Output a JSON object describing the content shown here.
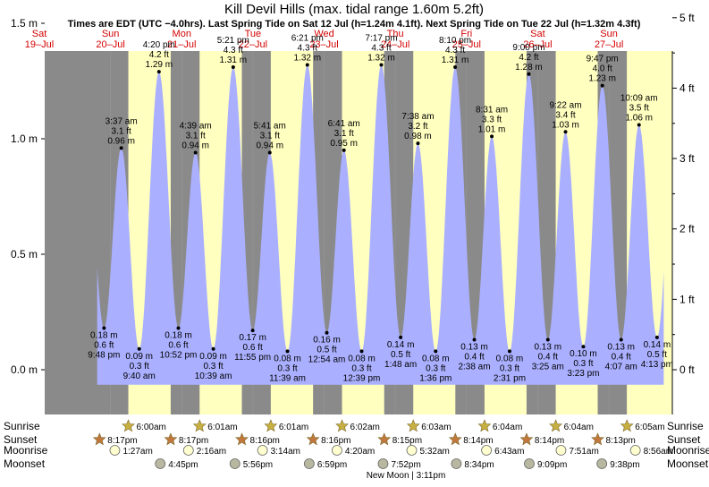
{
  "title": "Kill Devil Hills (max. tidal range 1.60m 5.2ft)",
  "subtitle": "Times are EDT (UTC −4.0hrs). Last Spring Tide on Sat 12 Jul (h=1.24m 4.1ft). Next Spring Tide on Tue 22 Jul (h=1.32m 4.3ft)",
  "colors": {
    "night": "#8a8a8a",
    "day": "#ffffc0",
    "tide_fill": "#aab0ff",
    "axis_text": "#000000",
    "date_text": "#d40000",
    "sunrise_star": "#c8b040",
    "sunset_star": "#c0783c",
    "moonrise": "#ffffd0",
    "moonset": "#b8b8a0"
  },
  "day_headers": [
    {
      "day": "Sat",
      "date": "19–Jul"
    },
    {
      "day": "Sun",
      "date": "20–Jul"
    },
    {
      "day": "Mon",
      "date": "21–Jul"
    },
    {
      "day": "Tue",
      "date": "22–Jul"
    },
    {
      "day": "Wed",
      "date": "23–Jul"
    },
    {
      "day": "Thu",
      "date": "24–Jul"
    },
    {
      "day": "Fri",
      "date": "25–Jul"
    },
    {
      "day": "Sat",
      "date": "26–Jul"
    },
    {
      "day": "Sun",
      "date": "27–Jul"
    }
  ],
  "row_labels": {
    "sunrise": "Sunrise",
    "sunset": "Sunset",
    "moonrise": "Moonrise",
    "moonset": "Moonset"
  },
  "moon_phase_note": "New Moon | 3:11pm",
  "chart_data": {
    "type": "area",
    "x_unit": "hours from 00:00 Sat 19 Jul (EDT)",
    "x_range": [
      0,
      216
    ],
    "ylim_m": [
      -0.2,
      1.72
    ],
    "ylim_ft_ticks": [
      "0 ft",
      "1 ft",
      "2 ft",
      "3 ft",
      "4 ft",
      "5 ft"
    ],
    "y_ticks_m": [
      "0.0 m",
      "0.5 m",
      "1.0 m",
      "1.5 m"
    ],
    "tides": [
      {
        "x": 21.8,
        "h": 0.18,
        "type": "low",
        "time": "9:48 pm",
        "m": "0.18 m",
        "ft": "0.6 ft"
      },
      {
        "x": 27.62,
        "h": 0.96,
        "type": "high",
        "time": "3:37 am",
        "m": "0.96 m",
        "ft": "3.1 ft"
      },
      {
        "x": 33.67,
        "h": 0.09,
        "type": "low",
        "time": "9:40 am",
        "m": "0.09 m",
        "ft": "0.3 ft"
      },
      {
        "x": 40.33,
        "h": 1.29,
        "type": "high",
        "time": "4:20 pm",
        "m": "1.29 m",
        "ft": "4.2 ft"
      },
      {
        "x": 46.87,
        "h": 0.18,
        "type": "low",
        "time": "10:52 pm",
        "m": "0.18 m",
        "ft": "0.6 ft"
      },
      {
        "x": 52.65,
        "h": 0.94,
        "type": "high",
        "time": "4:39 am",
        "m": "0.94 m",
        "ft": "3.1 ft"
      },
      {
        "x": 58.65,
        "h": 0.09,
        "type": "low",
        "time": "10:39 am",
        "m": "0.09 m",
        "ft": "0.3 ft"
      },
      {
        "x": 65.35,
        "h": 1.31,
        "type": "high",
        "time": "5:21 pm",
        "m": "1.31 m",
        "ft": "4.3 ft"
      },
      {
        "x": 71.92,
        "h": 0.17,
        "type": "low",
        "time": "11:55 pm",
        "m": "0.17 m",
        "ft": "0.6 ft"
      },
      {
        "x": 77.68,
        "h": 0.94,
        "type": "high",
        "time": "5:41 am",
        "m": "0.94 m",
        "ft": "3.1 ft"
      },
      {
        "x": 83.65,
        "h": 0.08,
        "type": "low",
        "time": "11:39 am",
        "m": "0.08 m",
        "ft": "0.3 ft"
      },
      {
        "x": 90.35,
        "h": 1.32,
        "type": "high",
        "time": "6:21 pm",
        "m": "1.32 m",
        "ft": "4.3 ft"
      },
      {
        "x": 96.9,
        "h": 0.16,
        "type": "low",
        "time": "12:54 am",
        "m": "0.16 m",
        "ft": "0.5 ft"
      },
      {
        "x": 102.68,
        "h": 0.95,
        "type": "high",
        "time": "6:41 am",
        "m": "0.95 m",
        "ft": "3.1 ft"
      },
      {
        "x": 108.65,
        "h": 0.08,
        "type": "low",
        "time": "12:39 pm",
        "m": "0.08 m",
        "ft": "0.3 ft"
      },
      {
        "x": 115.28,
        "h": 1.32,
        "type": "high",
        "time": "7:17 pm",
        "m": "1.32 m",
        "ft": "4.3 ft"
      },
      {
        "x": 121.8,
        "h": 0.14,
        "type": "low",
        "time": "1:48 am",
        "m": "0.14 m",
        "ft": "0.5 ft"
      },
      {
        "x": 127.63,
        "h": 0.98,
        "type": "high",
        "time": "7:38 am",
        "m": "0.98 m",
        "ft": "3.2 ft"
      },
      {
        "x": 133.6,
        "h": 0.08,
        "type": "low",
        "time": "1:36 pm",
        "m": "0.08 m",
        "ft": "0.3 ft"
      },
      {
        "x": 140.17,
        "h": 1.31,
        "type": "high",
        "time": "8:10 pm",
        "m": "1.31 m",
        "ft": "4.3 ft"
      },
      {
        "x": 146.63,
        "h": 0.13,
        "type": "low",
        "time": "2:38 am",
        "m": "0.13 m",
        "ft": "0.4 ft"
      },
      {
        "x": 152.52,
        "h": 1.01,
        "type": "high",
        "time": "8:31 am",
        "m": "1.01 m",
        "ft": "3.3 ft"
      },
      {
        "x": 158.52,
        "h": 0.08,
        "type": "low",
        "time": "2:31 pm",
        "m": "0.08 m",
        "ft": "0.3 ft"
      },
      {
        "x": 165.0,
        "h": 1.28,
        "type": "high",
        "time": "9:00 pm",
        "m": "1.28 m",
        "ft": "4.2 ft"
      },
      {
        "x": 171.42,
        "h": 0.13,
        "type": "low",
        "time": "3:25 am",
        "m": "0.13 m",
        "ft": "0.4 ft"
      },
      {
        "x": 177.37,
        "h": 1.03,
        "type": "high",
        "time": "9:22 am",
        "m": "1.03 m",
        "ft": "3.4 ft"
      },
      {
        "x": 183.38,
        "h": 0.1,
        "type": "low",
        "time": "3:23 pm",
        "m": "0.10 m",
        "ft": "0.3 ft"
      },
      {
        "x": 189.78,
        "h": 1.23,
        "type": "high",
        "time": "9:47 pm",
        "m": "1.23 m",
        "ft": "4.0 ft"
      },
      {
        "x": 196.12,
        "h": 0.13,
        "type": "low",
        "time": "4:07 am",
        "m": "0.13 m",
        "ft": "0.4 ft"
      },
      {
        "x": 202.15,
        "h": 1.06,
        "type": "high",
        "time": "10:09 am",
        "m": "1.06 m",
        "ft": "3.5 ft"
      },
      {
        "x": 208.22,
        "h": 0.14,
        "type": "low",
        "time": "4:13 pm",
        "m": "0.14 m",
        "ft": "0.5 ft"
      }
    ],
    "sunrise": [
      {
        "x": 30.0,
        "label": "6:00am"
      },
      {
        "x": 54.02,
        "label": "6:01am"
      },
      {
        "x": 78.02,
        "label": "6:01am"
      },
      {
        "x": 102.03,
        "label": "6:02am"
      },
      {
        "x": 126.05,
        "label": "6:03am"
      },
      {
        "x": 150.07,
        "label": "6:04am"
      },
      {
        "x": 174.07,
        "label": "6:04am"
      },
      {
        "x": 198.08,
        "label": "6:05am"
      }
    ],
    "sunset": [
      {
        "x": 20.28,
        "label": "8:17pm"
      },
      {
        "x": 44.28,
        "label": "8:17pm"
      },
      {
        "x": 68.27,
        "label": "8:16pm"
      },
      {
        "x": 92.27,
        "label": "8:16pm"
      },
      {
        "x": 116.25,
        "label": "8:15pm"
      },
      {
        "x": 140.23,
        "label": "8:14pm"
      },
      {
        "x": 164.23,
        "label": "8:14pm"
      },
      {
        "x": 188.22,
        "label": "8:13pm"
      }
    ],
    "moonrise": [
      {
        "x": 25.45,
        "label": "1:27am"
      },
      {
        "x": 50.27,
        "label": "2:16am"
      },
      {
        "x": 75.23,
        "label": "3:14am"
      },
      {
        "x": 100.33,
        "label": "4:20am"
      },
      {
        "x": 125.53,
        "label": "5:32am"
      },
      {
        "x": 150.72,
        "label": "6:43am"
      },
      {
        "x": 175.85,
        "label": "7:51am"
      },
      {
        "x": 200.93,
        "label": "8:56am"
      }
    ],
    "moonset": [
      {
        "x": 40.75,
        "label": "4:45pm"
      },
      {
        "x": 65.93,
        "label": "5:56pm"
      },
      {
        "x": 90.98,
        "label": "6:59pm"
      },
      {
        "x": 115.87,
        "label": "7:52pm"
      },
      {
        "x": 140.57,
        "label": "8:34pm"
      },
      {
        "x": 165.15,
        "label": "9:09pm"
      },
      {
        "x": 189.63,
        "label": "9:38pm"
      }
    ]
  }
}
